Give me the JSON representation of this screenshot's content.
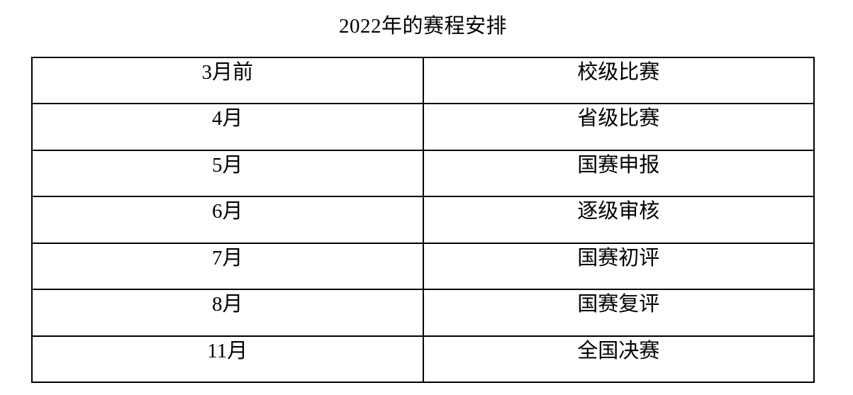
{
  "title": "2022年的赛程安排",
  "table": {
    "rows": [
      {
        "time": "3月前",
        "event": "校级比赛"
      },
      {
        "time": "4月",
        "event": "省级比赛"
      },
      {
        "time": "5月",
        "event": "国赛申报"
      },
      {
        "time": "6月",
        "event": "逐级审核"
      },
      {
        "time": "7月",
        "event": "国赛初评"
      },
      {
        "time": "8月",
        "event": "国赛复评"
      },
      {
        "time": "11月",
        "event": "全国决赛"
      }
    ]
  },
  "chart_data": {
    "type": "table",
    "title": "2022年的赛程安排",
    "rows": [
      [
        "3月前",
        "校级比赛"
      ],
      [
        "4月",
        "省级比赛"
      ],
      [
        "5月",
        "国赛申报"
      ],
      [
        "6月",
        "逐级审核"
      ],
      [
        "7月",
        "国赛初评"
      ],
      [
        "8月",
        "国赛复评"
      ],
      [
        "11月",
        "全国决赛"
      ]
    ]
  }
}
